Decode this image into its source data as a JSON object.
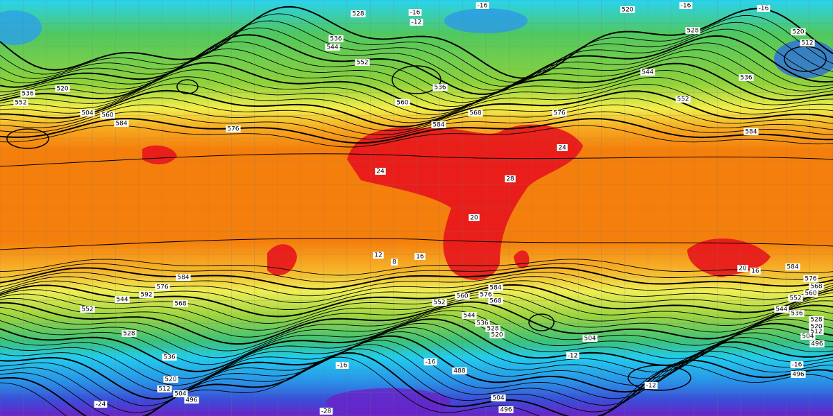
{
  "labels": [
    "528",
    "-16",
    "-12",
    "-16",
    "520",
    "-16",
    "-16",
    "528",
    "520",
    "512",
    "536",
    "544",
    "552",
    "536",
    "560",
    "568",
    "576",
    "584",
    "584",
    "552",
    "536",
    "544",
    "536",
    "520",
    "552",
    "504",
    "560",
    "584",
    "576",
    "24",
    "24",
    "20",
    "28",
    "12",
    "16",
    "8",
    "584",
    "576",
    "592",
    "544",
    "568",
    "552",
    "528",
    "536",
    "520",
    "512",
    "504",
    "496",
    "584",
    "576",
    "568",
    "560",
    "552",
    "544",
    "536",
    "528",
    "520",
    "504",
    "-12",
    "-16",
    "-16",
    "488",
    "504",
    "496",
    "584",
    "576",
    "568",
    "560",
    "552",
    "544",
    "536",
    "528",
    "520",
    "512",
    "504",
    "496",
    "496",
    "20",
    "16",
    "-12",
    "-16",
    "-24",
    "-28"
  ]
}
